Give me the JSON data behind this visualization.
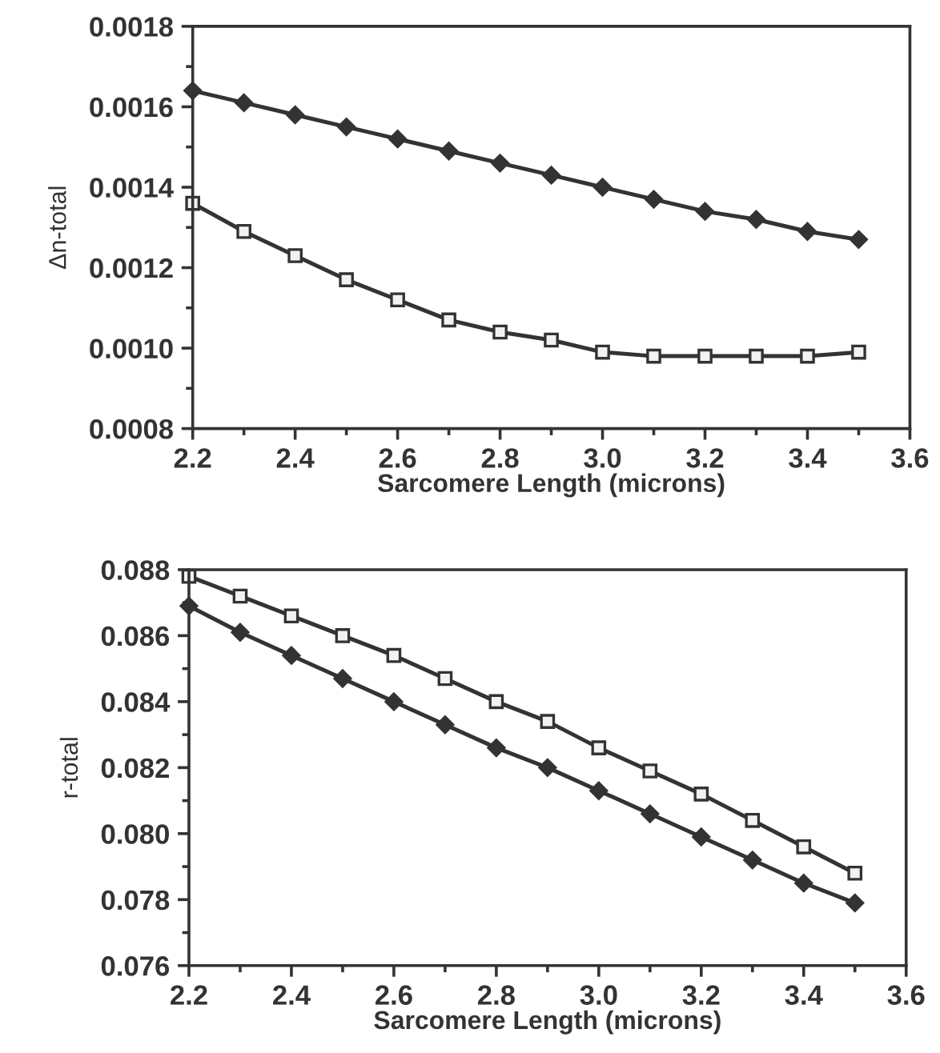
{
  "chart_data": [
    {
      "type": "line",
      "xlabel": "Sarcomere Length (microns)",
      "ylabel": "Δn-total",
      "xlim": [
        2.2,
        3.6
      ],
      "xticks": [
        {
          "value": 2.2,
          "label": "2.2"
        },
        {
          "value": 2.4,
          "label": "2.4"
        },
        {
          "value": 2.6,
          "label": "2.6"
        },
        {
          "value": 2.8,
          "label": "2.8"
        },
        {
          "value": 3.0,
          "label": "3.0"
        },
        {
          "value": 3.2,
          "label": "3.2"
        },
        {
          "value": 3.4,
          "label": "3.4"
        },
        {
          "value": 3.6,
          "label": "3.6"
        }
      ],
      "ylim": [
        0.0008,
        0.0018
      ],
      "yticks": [
        {
          "value": 0.0008,
          "label": "0.0008"
        },
        {
          "value": 0.001,
          "label": "0.0010"
        },
        {
          "value": 0.0012,
          "label": "0.0012"
        },
        {
          "value": 0.0014,
          "label": "0.0014"
        },
        {
          "value": 0.0016,
          "label": "0.0016"
        },
        {
          "value": 0.0018,
          "label": "0.0018"
        }
      ],
      "grid": false,
      "x": [
        2.2,
        2.3,
        2.4,
        2.5,
        2.6,
        2.7,
        2.8,
        2.9,
        3.0,
        3.1,
        3.2,
        3.3,
        3.4,
        3.5
      ],
      "series": [
        {
          "color": "#333333",
          "marker": "diamond",
          "values": [
            0.00164,
            0.00161,
            0.00158,
            0.00155,
            0.00152,
            0.00149,
            0.00146,
            0.00143,
            0.0014,
            0.00137,
            0.00134,
            0.00132,
            0.00129,
            0.00127
          ]
        },
        {
          "color": "#333333",
          "marker": "square",
          "values": [
            0.00136,
            0.00129,
            0.00123,
            0.00117,
            0.00112,
            0.00107,
            0.00104,
            0.00102,
            0.00099,
            0.00098,
            0.00098,
            0.00098,
            0.00098,
            0.00099
          ]
        }
      ]
    },
    {
      "type": "line",
      "xlabel": "Sarcomere Length (microns)",
      "ylabel": "r-total",
      "xlim": [
        2.2,
        3.6
      ],
      "xticks": [
        {
          "value": 2.2,
          "label": "2.2"
        },
        {
          "value": 2.4,
          "label": "2.4"
        },
        {
          "value": 2.6,
          "label": "2.6"
        },
        {
          "value": 2.8,
          "label": "2.8"
        },
        {
          "value": 3.0,
          "label": "3.0"
        },
        {
          "value": 3.2,
          "label": "3.2"
        },
        {
          "value": 3.4,
          "label": "3.4"
        },
        {
          "value": 3.6,
          "label": "3.6"
        }
      ],
      "ylim": [
        0.076,
        0.088
      ],
      "yticks": [
        {
          "value": 0.076,
          "label": "0.076"
        },
        {
          "value": 0.078,
          "label": "0.078"
        },
        {
          "value": 0.08,
          "label": "0.080"
        },
        {
          "value": 0.082,
          "label": "0.082"
        },
        {
          "value": 0.084,
          "label": "0.084"
        },
        {
          "value": 0.086,
          "label": "0.086"
        },
        {
          "value": 0.088,
          "label": "0.088"
        }
      ],
      "grid": false,
      "x": [
        2.2,
        2.3,
        2.4,
        2.5,
        2.6,
        2.7,
        2.8,
        2.9,
        3.0,
        3.1,
        3.2,
        3.3,
        3.4,
        3.5
      ],
      "series": [
        {
          "color": "#333333",
          "marker": "square",
          "values": [
            0.0878,
            0.0872,
            0.0866,
            0.086,
            0.0854,
            0.0847,
            0.084,
            0.0834,
            0.0826,
            0.0819,
            0.0812,
            0.0804,
            0.0796,
            0.0788
          ]
        },
        {
          "color": "#333333",
          "marker": "diamond",
          "values": [
            0.0869,
            0.0861,
            0.0854,
            0.0847,
            0.084,
            0.0833,
            0.0826,
            0.082,
            0.0813,
            0.0806,
            0.0799,
            0.0792,
            0.0785,
            0.0779
          ]
        }
      ]
    }
  ]
}
